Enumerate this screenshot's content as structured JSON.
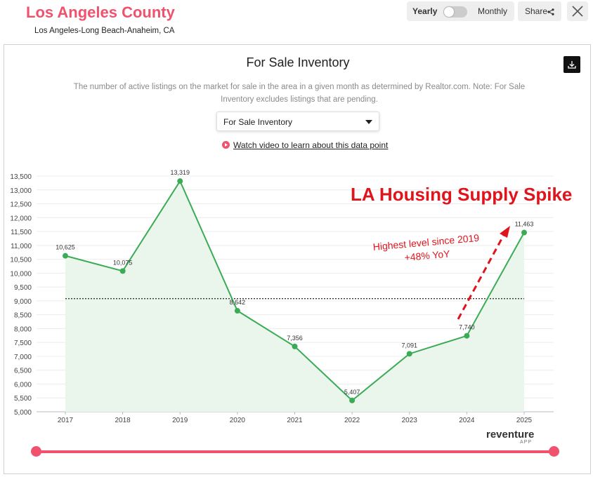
{
  "header": {
    "title": "Los Angeles County",
    "subtitle": "Los Angeles-Long Beach-Anaheim, CA",
    "toggle": {
      "left_label": "Yearly",
      "right_label": "Monthly",
      "selected": "Yearly"
    },
    "share_label": "Share"
  },
  "card": {
    "title": "For Sale Inventory",
    "description": "The number of active listings on the market for sale in the area in a given month as determined by Realtor.com. Note: For Sale Inventory excludes listings that are pending.",
    "select_value": "For Sale Inventory",
    "video_link": "Watch video to learn about this data point"
  },
  "annotation": {
    "title": "LA Housing Supply Spike",
    "line1": "Highest level since 2019",
    "line2": "+48% YoY"
  },
  "brand": {
    "name": "reventure",
    "sub": "APP"
  },
  "colors": {
    "accent": "#f0526d",
    "line": "#3bab56",
    "annotation": "#e0141c"
  },
  "chart_data": {
    "type": "area",
    "x": [
      "2017",
      "2018",
      "2019",
      "2020",
      "2021",
      "2022",
      "2023",
      "2024",
      "2025"
    ],
    "series": [
      {
        "values": [
          10625,
          10075,
          13319,
          8642,
          7356,
          5407,
          7091,
          7740,
          11463
        ],
        "labels": [
          "10,625",
          "10,075",
          "13,319",
          "8,642",
          "7,356",
          "5,407",
          "7,091",
          "7,740",
          "11,463"
        ]
      }
    ],
    "y_ticks": [
      "5,000",
      "5,500",
      "6,000",
      "6,500",
      "7,000",
      "7,500",
      "8,000",
      "8,500",
      "9,000",
      "9,500",
      "10,000",
      "10,500",
      "11,000",
      "11,500",
      "12,000",
      "12,500",
      "13,000",
      "13,500"
    ],
    "ylim": [
      5000,
      13500
    ],
    "reference_line": 9079,
    "grid": true
  }
}
